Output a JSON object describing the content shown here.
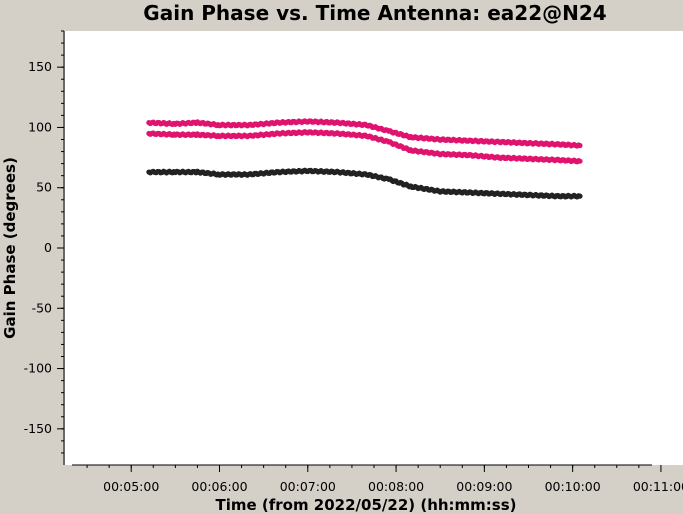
{
  "chart_data": {
    "type": "scatter",
    "title": "Gain Phase vs. Time Antenna: ea22@N24",
    "xlabel": "Time (from 2022/05/22) (hh:mm:ss)",
    "ylabel": "Gain Phase (degrees)",
    "xlim": [
      "00:04:15",
      "00:11:15"
    ],
    "ylim": [
      -180,
      180
    ],
    "x_ticks": [
      "00:05:00",
      "00:06:00",
      "00:07:00",
      "00:08:00",
      "00:09:00",
      "00:10:00",
      "00:11:00"
    ],
    "y_ticks": [
      150,
      100,
      50,
      0,
      -50,
      -100,
      -150
    ],
    "grid": false,
    "series": [
      {
        "color": "#e0136f",
        "x": [
          "00:05:12",
          "00:05:30",
          "00:05:45",
          "00:06:00",
          "00:06:20",
          "00:06:40",
          "00:07:00",
          "00:07:20",
          "00:07:40",
          "00:07:55",
          "00:08:10",
          "00:08:30",
          "00:08:50",
          "00:09:10",
          "00:09:30",
          "00:09:50",
          "00:10:05"
        ],
        "values": [
          104,
          103,
          104,
          102,
          102,
          104,
          105,
          104,
          102,
          97,
          92,
          90,
          89,
          88,
          87,
          86,
          85
        ]
      },
      {
        "color": "#e0136f",
        "x": [
          "00:05:12",
          "00:05:30",
          "00:05:45",
          "00:06:00",
          "00:06:20",
          "00:06:40",
          "00:07:00",
          "00:07:20",
          "00:07:40",
          "00:07:55",
          "00:08:10",
          "00:08:30",
          "00:08:50",
          "00:09:10",
          "00:09:30",
          "00:09:50",
          "00:10:05"
        ],
        "values": [
          95,
          94,
          94,
          93,
          93,
          95,
          96,
          95,
          93,
          88,
          81,
          78,
          77,
          75,
          74,
          73,
          72
        ]
      },
      {
        "color": "#222222",
        "x": [
          "00:05:12",
          "00:05:30",
          "00:05:45",
          "00:06:00",
          "00:06:20",
          "00:06:40",
          "00:07:00",
          "00:07:20",
          "00:07:40",
          "00:07:55",
          "00:08:10",
          "00:08:30",
          "00:08:50",
          "00:09:10",
          "00:09:30",
          "00:09:50",
          "00:10:05"
        ],
        "values": [
          63,
          63,
          63,
          61,
          61,
          63,
          64,
          63,
          61,
          57,
          51,
          47,
          46,
          45,
          44,
          43,
          43
        ]
      }
    ]
  }
}
